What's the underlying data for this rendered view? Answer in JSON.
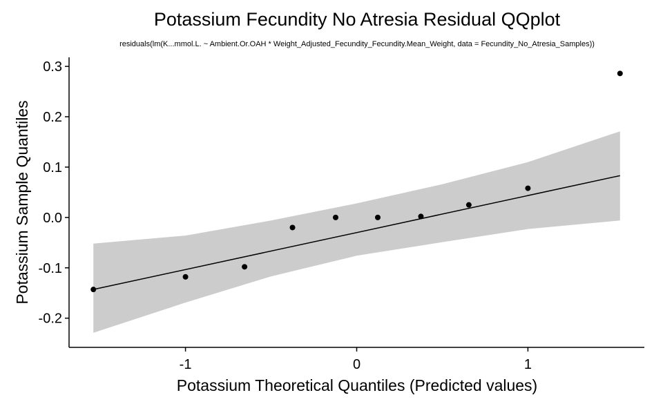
{
  "chart_data": {
    "type": "scatter",
    "title": "Potassium Fecundity No Atresia Residual QQplot",
    "subtitle": "residuals(lm(K...mmol.L. ~ Ambient.Or.OAH * Weight_Adjusted_Fecundity_Fecundity.Mean_Weight, data = Fecundity_No_Atresia_Samples))",
    "xlabel": "Potassium Theoretical Quantiles (Predicted values)",
    "ylabel": "Potassium Sample Quantiles",
    "xlim": [
      -1.68,
      1.68
    ],
    "ylim": [
      -0.258,
      0.318
    ],
    "xticks": [
      -1,
      0,
      1
    ],
    "xtick_labels": [
      "-1",
      "0",
      "1"
    ],
    "yticks": [
      -0.2,
      -0.1,
      0.0,
      0.1,
      0.2,
      0.3
    ],
    "ytick_labels": [
      "-0.2",
      "-0.1",
      "0.0",
      "0.1",
      "0.2",
      "0.3"
    ],
    "grid": false,
    "points": [
      {
        "x": -1.538,
        "y": -0.143
      },
      {
        "x": -1.0,
        "y": -0.118
      },
      {
        "x": -0.655,
        "y": -0.098
      },
      {
        "x": -0.375,
        "y": -0.02
      },
      {
        "x": -0.123,
        "y": 0.0
      },
      {
        "x": 0.123,
        "y": 0.0
      },
      {
        "x": 0.375,
        "y": 0.002
      },
      {
        "x": 0.655,
        "y": 0.025
      },
      {
        "x": 1.0,
        "y": 0.058
      },
      {
        "x": 1.538,
        "y": 0.286
      }
    ],
    "reference_line": {
      "x": [
        -1.538,
        1.538
      ],
      "y": [
        -0.143,
        0.083
      ]
    },
    "confidence_band": {
      "x": [
        -1.538,
        -1.0,
        -0.5,
        0.0,
        0.5,
        1.0,
        1.538
      ],
      "lower": [
        -0.229,
        -0.169,
        -0.117,
        -0.076,
        -0.049,
        -0.023,
        -0.006
      ],
      "upper": [
        -0.052,
        -0.036,
        -0.006,
        0.028,
        0.066,
        0.11,
        0.171
      ]
    },
    "colors": {
      "points": "#000000",
      "line": "#000000",
      "band": "#cccccc"
    }
  }
}
